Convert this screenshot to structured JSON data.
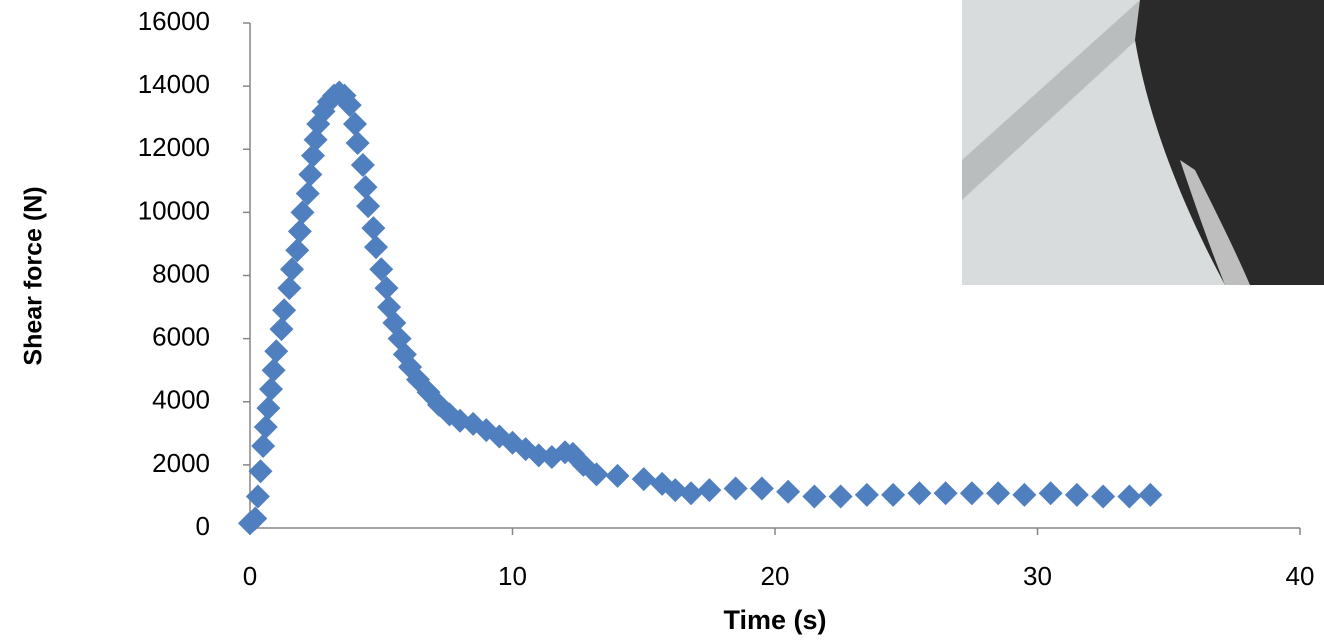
{
  "chart_data": {
    "type": "scatter",
    "x_label": "Time (s)",
    "y_label": "Shear force (N)",
    "color": "#4f7fbe",
    "xlim": [
      0,
      40
    ],
    "ylim": [
      0,
      16000
    ],
    "xticks": [
      0,
      10,
      20,
      30,
      40
    ],
    "yticks": [
      0,
      2000,
      4000,
      6000,
      8000,
      10000,
      12000,
      14000,
      16000
    ],
    "x": [
      0,
      0.2,
      0.3,
      0.4,
      0.5,
      0.6,
      0.7,
      0.8,
      0.9,
      1.0,
      1.2,
      1.3,
      1.5,
      1.6,
      1.8,
      1.9,
      2.0,
      2.2,
      2.3,
      2.4,
      2.5,
      2.6,
      2.8,
      3.0,
      3.2,
      3.4,
      3.6,
      3.8,
      4.0,
      4.1,
      4.3,
      4.4,
      4.5,
      4.7,
      4.8,
      5.0,
      5.2,
      5.3,
      5.5,
      5.7,
      5.9,
      6.1,
      6.4,
      6.8,
      7.2,
      7.6,
      8.0,
      8.5,
      9.0,
      9.5,
      10.0,
      10.5,
      11.0,
      11.5,
      12.0,
      12.3,
      12.7,
      13.2,
      14.0,
      15.0,
      15.7,
      16.2,
      16.8,
      17.5,
      18.5,
      19.5,
      20.5,
      21.5,
      22.5,
      23.5,
      24.5,
      25.5,
      26.5,
      27.5,
      28.5,
      29.5,
      30.5,
      31.5,
      32.5,
      33.5,
      34.3
    ],
    "values": [
      150,
      300,
      1000,
      1800,
      2600,
      3200,
      3800,
      4400,
      5000,
      5600,
      6300,
      6900,
      7600,
      8200,
      8800,
      9400,
      10000,
      10600,
      11200,
      11800,
      12300,
      12800,
      13200,
      13500,
      13700,
      13800,
      13700,
      13400,
      12800,
      12200,
      11500,
      10800,
      10200,
      9500,
      8900,
      8200,
      7600,
      7000,
      6500,
      6000,
      5500,
      5100,
      4700,
      4300,
      3900,
      3600,
      3400,
      3300,
      3100,
      2900,
      2700,
      2500,
      2300,
      2250,
      2400,
      2350,
      2000,
      1700,
      1650,
      1550,
      1400,
      1200,
      1100,
      1200,
      1250,
      1250,
      1150,
      1000,
      1000,
      1050,
      1050,
      1100,
      1100,
      1100,
      1100,
      1050,
      1100,
      1050,
      1000,
      1000,
      1050
    ]
  }
}
